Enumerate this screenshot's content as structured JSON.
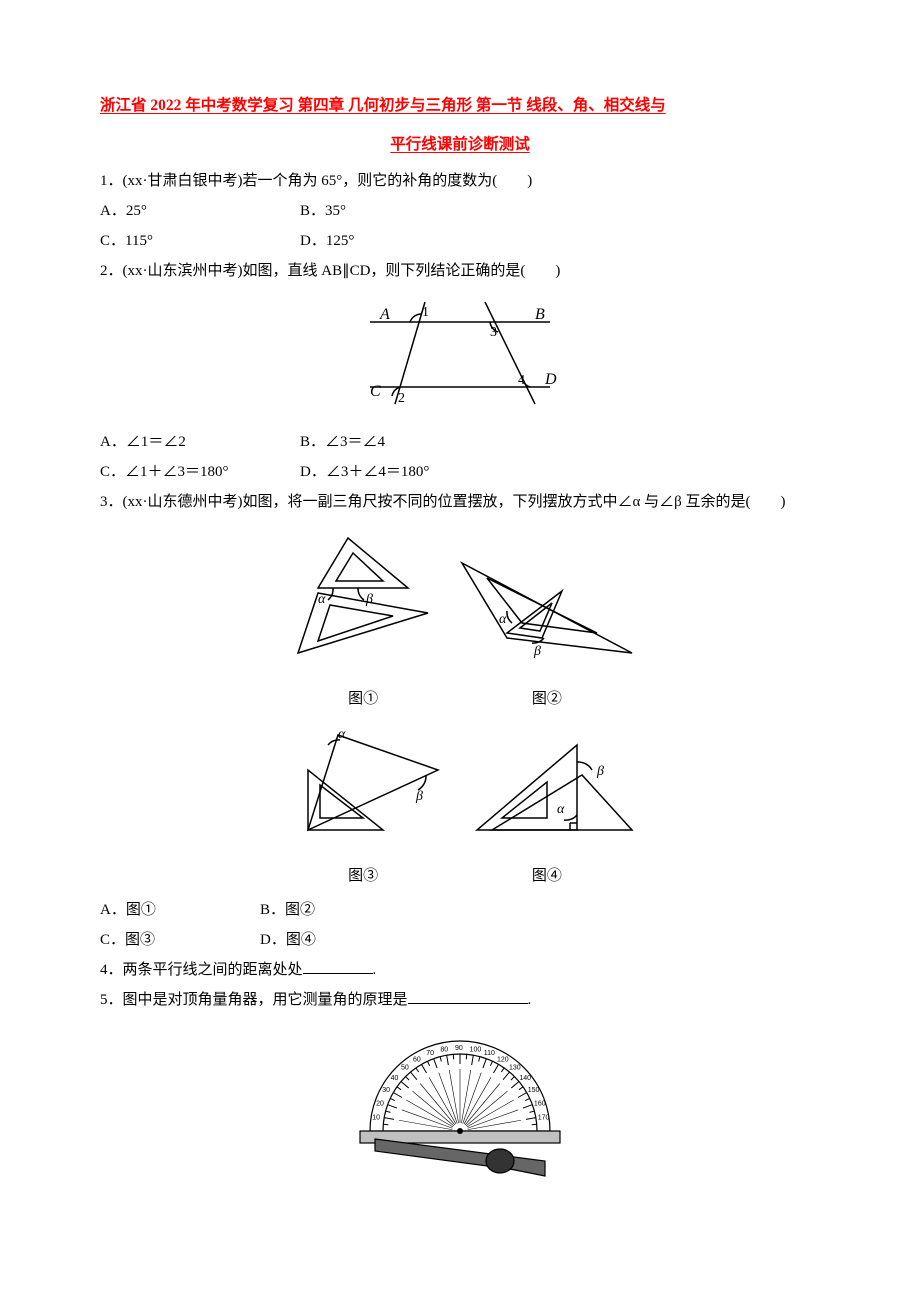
{
  "title": "浙江省 2022 年中考数学复习 第四章 几何初步与三角形 第一节 线段、角、相交线与",
  "subtitle": "平行线课前诊断测试",
  "q1": {
    "text": "1．(xx·甘肃白银中考)若一个角为 65°，则它的补角的度数为(　　)",
    "A": "A．25°",
    "B": "B．35°",
    "C": "C．115°",
    "D": "D．125°"
  },
  "q2": {
    "text": "2．(xx·山东滨州中考)如图，直线 AB∥CD，则下列结论正确的是(　　)",
    "A": "A．∠1＝∠2",
    "B": "B．∠3＝∠4",
    "C": "C．∠1＋∠3＝180°",
    "D": "D．∠3＋∠4＝180°",
    "figure": {
      "labels": {
        "A": "A",
        "B": "B",
        "C": "C",
        "D": "D",
        "n1": "1",
        "n2": "2",
        "n3": "3",
        "n4": "4"
      }
    }
  },
  "q3": {
    "text": "3．(xx·山东德州中考)如图，将一副三角尺按不同的位置摆放，下列摆放方式中∠α 与∠β 互余的是(　　)",
    "A": "A．图①",
    "B": "B．图②",
    "C": "C．图③",
    "D": "D．图④",
    "f1": "图①",
    "f2": "图②",
    "f3": "图③",
    "f4": "图④",
    "alpha": "α",
    "beta": "β"
  },
  "q4": {
    "text": "4．两条平行线之间的距离处处",
    "tail": "."
  },
  "q5": {
    "text": "5．图中是对顶角量角器，用它测量角的原理是",
    "tail": "."
  },
  "colors": {
    "accent": "#ff0000",
    "text": "#000000",
    "bg": "#ffffff"
  }
}
